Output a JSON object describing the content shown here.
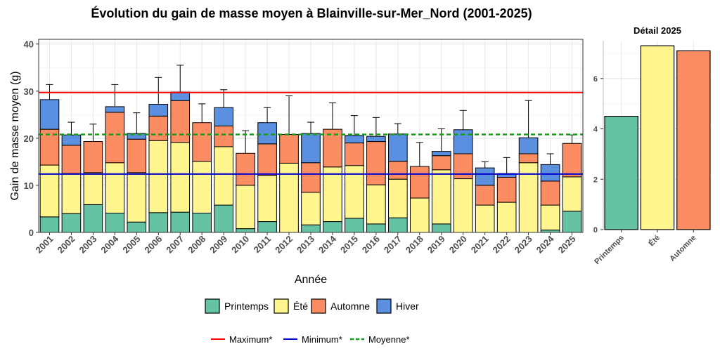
{
  "title": "Évolution du gain de masse moyen à Blainville-sur-Mer_Nord (2001-2025)",
  "colors": {
    "Printemps": "#66C2A5",
    "Été": "#FFF68F",
    "Automne": "#FC8D62",
    "Hiver": "#5B8FE0",
    "Maximum": "#FF0000",
    "Minimum": "#0000CD",
    "Moyenne": "#1A9A1A"
  },
  "chart_data": [
    {
      "type": "bar",
      "stacked": true,
      "xlabel": "Année",
      "ylabel": "Gain de masse moyen (g)",
      "ylim": [
        0,
        41
      ],
      "yticks": [
        0,
        10,
        20,
        30,
        40
      ],
      "grid": true,
      "categories": [
        "2001",
        "2002",
        "2003",
        "2004",
        "2005",
        "2006",
        "2007",
        "2008",
        "2009",
        "2010",
        "2011",
        "2012",
        "2013",
        "2014",
        "2015",
        "2016",
        "2017",
        "2018",
        "2019",
        "2020",
        "2021",
        "2022",
        "2023",
        "2024",
        "2025"
      ],
      "series": [
        {
          "name": "Printemps",
          "values": [
            3.3,
            4.0,
            5.9,
            4.1,
            2.2,
            4.2,
            4.3,
            4.1,
            5.8,
            0.8,
            2.3,
            0,
            1.6,
            2.3,
            3.0,
            1.8,
            3.1,
            0,
            1.8,
            0,
            0,
            0,
            0,
            0.5,
            4.5
          ]
        },
        {
          "name": "Été",
          "values": [
            11.0,
            8.5,
            6.8,
            10.7,
            10.5,
            15.3,
            14.8,
            11.0,
            12.4,
            9.2,
            9.8,
            14.7,
            6.9,
            11.6,
            11.2,
            8.3,
            8.2,
            7.3,
            11.5,
            11.4,
            5.8,
            6.4,
            14.8,
            5.3,
            7.3
          ]
        },
        {
          "name": "Automne",
          "values": [
            7.6,
            6.0,
            6.6,
            10.7,
            7.1,
            5.2,
            8.9,
            8.2,
            4.4,
            6.8,
            6.7,
            6.1,
            6.3,
            8.0,
            4.8,
            9.2,
            3.8,
            6.7,
            3.0,
            5.3,
            4.2,
            5.3,
            1.9,
            5.1,
            7.1
          ]
        },
        {
          "name": "Hiver",
          "values": [
            6.3,
            2.2,
            0,
            1.2,
            1.2,
            2.5,
            1.8,
            0,
            3.9,
            0,
            4.5,
            0,
            6.2,
            0,
            1.6,
            1.1,
            5.8,
            0,
            0.9,
            5.1,
            3.7,
            0.8,
            3.4,
            3.5,
            0
          ]
        }
      ],
      "error_bars_top": [
        31.4,
        23.4,
        23.0,
        31.4,
        25.4,
        32.9,
        35.5,
        27.3,
        30.3,
        21.6,
        26.5,
        29.0,
        23.4,
        27.5,
        24.8,
        24.4,
        23.1,
        19.1,
        22.0,
        25.9,
        15.0,
        15.9,
        28.0,
        16.7,
        20.7
      ],
      "reference_lines": [
        {
          "name": "Maximum*",
          "value": 29.7,
          "style": "solid"
        },
        {
          "name": "Minimum*",
          "value": 12.4,
          "style": "solid"
        },
        {
          "name": "Moyenne*",
          "value": 20.8,
          "style": "dashed"
        }
      ]
    },
    {
      "type": "bar",
      "title": "Détail 2025",
      "ylim": [
        0,
        7.5
      ],
      "yticks": [
        0,
        2,
        4,
        6
      ],
      "grid": true,
      "categories": [
        "Printemps",
        "Été",
        "Automne"
      ],
      "values": [
        4.5,
        7.3,
        7.1
      ]
    }
  ],
  "legend": {
    "seasons": [
      "Printemps",
      "Été",
      "Automne",
      "Hiver"
    ],
    "lines": [
      "Maximum*",
      "Minimum*",
      "Moyenne*"
    ]
  }
}
